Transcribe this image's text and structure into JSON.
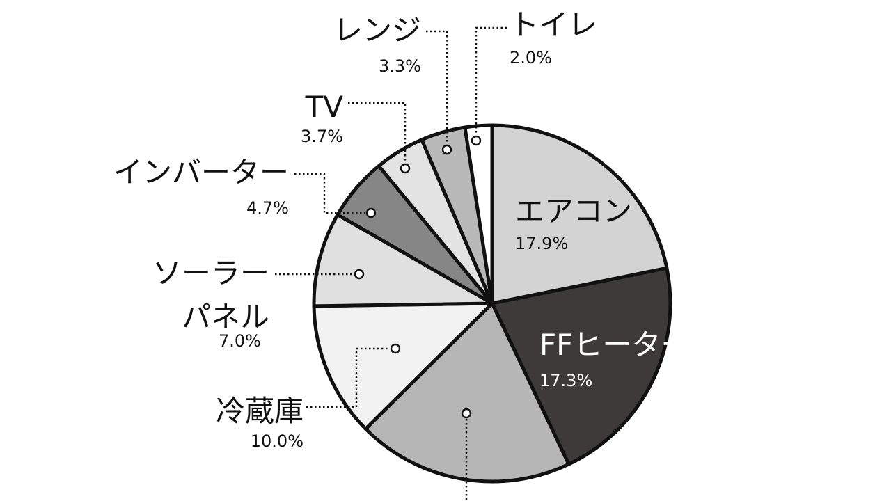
{
  "chart_data": {
    "type": "pie",
    "slices": [
      {
        "label": "エアコン",
        "value": 17.9,
        "value_text": "17.9%",
        "color": "#d3d3d3"
      },
      {
        "label": "FFヒーター",
        "value": 17.3,
        "value_text": "17.3%",
        "color": "#3d3a39"
      },
      {
        "label": "",
        "value": 16.1,
        "value_text": "",
        "color": "#b6b6b6"
      },
      {
        "label": "冷蔵庫",
        "value": 10.0,
        "value_text": "10.0%",
        "color": "#f2f2f2"
      },
      {
        "label": "ソーラーパネル",
        "label_lines": [
          "ソーラー",
          "パネル"
        ],
        "value": 7.0,
        "value_text": "7.0%",
        "color": "#e0e0e0"
      },
      {
        "label": "インバーター",
        "value": 4.7,
        "value_text": "4.7%",
        "color": "#868686"
      },
      {
        "label": "TV",
        "value": 3.7,
        "value_text": "3.7%",
        "color": "#e3e3e3"
      },
      {
        "label": "レンジ",
        "value": 3.3,
        "value_text": "3.3%",
        "color": "#b9b9b9"
      },
      {
        "label": "トイレ",
        "value": 2.0,
        "value_text": "2.0%",
        "color": "#ffffff"
      }
    ],
    "legend": "none"
  }
}
